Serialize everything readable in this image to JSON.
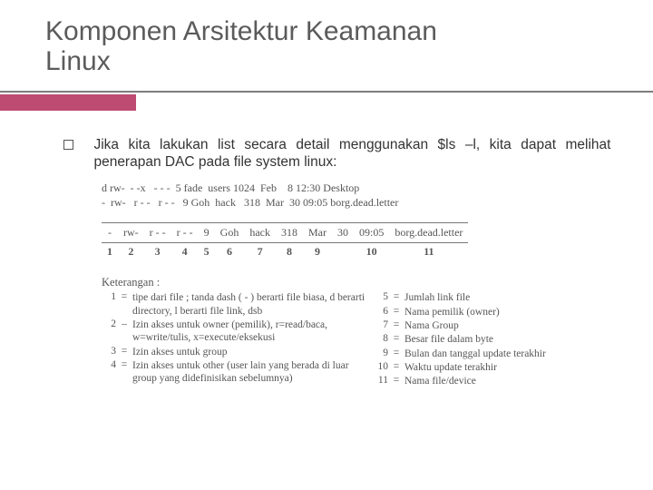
{
  "title_line1": "Komponen Arsitektur Keamanan",
  "title_line2": "Linux",
  "body": "Jika kita lakukan list secara detail menggunakan $ls –l, kita dapat melihat penerapan DAC pada file system linux:",
  "ls_lines": [
    "d rw-  - -x   - - -  5 fade  users 1024  Feb    8 12:30 Desktop",
    "-  rw-   r - -   r - -   9 Goh  hack   318  Mar  30 09:05 borg.dead.letter"
  ],
  "row_cells": [
    "-",
    "rw-",
    "r - -",
    "r - -",
    "9",
    "Goh",
    "hack",
    "318",
    "Mar",
    "30",
    "09:05",
    "borg.dead.letter"
  ],
  "row_nums": [
    "1",
    "2",
    "3",
    "4",
    "",
    "5",
    "6",
    "7",
    "8",
    "9",
    "",
    "10",
    "",
    "11"
  ],
  "ket_label": "Keterangan :",
  "ket_left": [
    {
      "n": "1",
      "eq": "=",
      "t": "tipe dari file ; tanda dash ( - ) berarti file biasa, d berarti directory, l berarti file link, dsb"
    },
    {
      "n": "2",
      "eq": "–",
      "t": "Izin akses untuk owner (pemilik), r=read/baca, w=write/tulis, x=execute/eksekusi"
    },
    {
      "n": "3",
      "eq": "=",
      "t": "Izin akses untuk group"
    },
    {
      "n": "4",
      "eq": "=",
      "t": "Izin akses untuk other (user lain yang berada di luar group yang didefinisikan sebelumnya)"
    }
  ],
  "ket_right": [
    {
      "n": "5",
      "eq": "=",
      "t": "Jumlah link file"
    },
    {
      "n": "6",
      "eq": "=",
      "t": "Nama pemilik (owner)"
    },
    {
      "n": "7",
      "eq": "=",
      "t": "Nama Group"
    },
    {
      "n": "8",
      "eq": "=",
      "t": "Besar file dalam byte"
    },
    {
      "n": "9",
      "eq": "=",
      "t": "Bulan dan tanggal update terakhir"
    },
    {
      "n": "10",
      "eq": "=",
      "t": "Waktu update terakhir"
    },
    {
      "n": "11",
      "eq": "=",
      "t": "Nama file/device"
    }
  ],
  "colors": {
    "accent": "#be4b71",
    "title_color": "#5b5b5b",
    "text_color": "#333333",
    "mono_color": "#555555",
    "underline": "#7d7d7d"
  }
}
